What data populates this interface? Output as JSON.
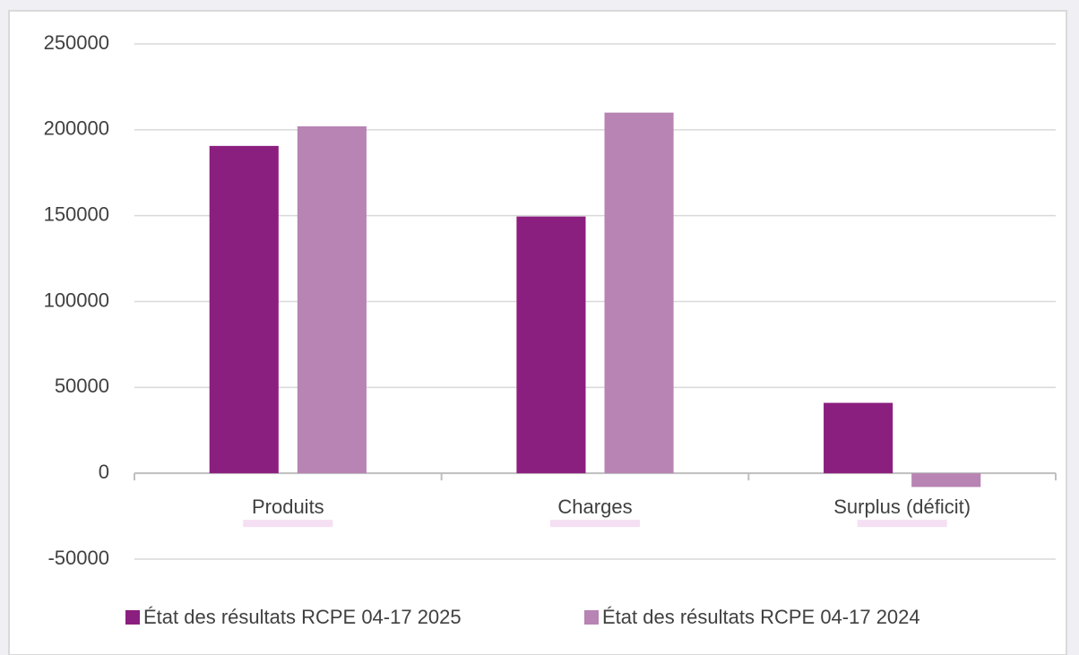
{
  "chart_data": {
    "type": "bar",
    "categories": [
      "Produits",
      "Charges",
      "Surplus (déficit)"
    ],
    "series": [
      {
        "name": "État des résultats RCPE 04-17 2025",
        "color": "#8b1f7f",
        "values": [
          190600,
          149500,
          41000
        ]
      },
      {
        "name": "État des résultats RCPE 04-17 2024",
        "color": "#b784b3",
        "values": [
          202000,
          210000,
          -8000
        ]
      }
    ],
    "ylim": [
      -50000,
      250000
    ],
    "yticks": [
      -50000,
      0,
      50000,
      100000,
      150000,
      200000,
      250000
    ],
    "grid": true,
    "legend": "bottom"
  }
}
